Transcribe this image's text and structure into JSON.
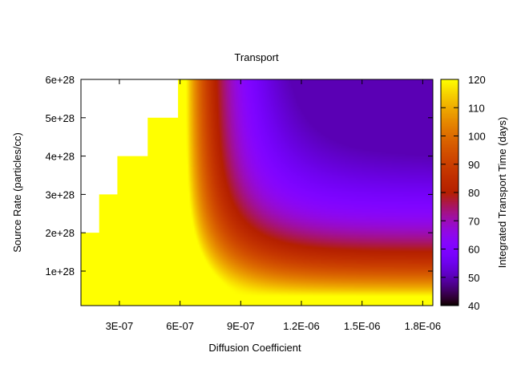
{
  "chart_data": {
    "type": "heatmap",
    "title": "Transport",
    "xlabel": "Diffusion Coefficient",
    "ylabel": "Source Rate (particles/cc)",
    "colorbar_label": "Integrated Transport Time (days)",
    "x_ticks": [
      "3E-07",
      "6E-07",
      "9E-07",
      "1.2E-06",
      "1.5E-06",
      "1.8E-06"
    ],
    "x_tick_values": [
      3e-07,
      6e-07,
      9e-07,
      1.2e-06,
      1.5e-06,
      1.8e-06
    ],
    "y_ticks": [
      "1e+28",
      "2e+28",
      "3e+28",
      "4e+28",
      "5e+28",
      "6e+28"
    ],
    "y_tick_values": [
      1e+28,
      2e+28,
      3e+28,
      4e+28,
      5e+28,
      6e+28
    ],
    "colorbar_ticks": [
      "40",
      "50",
      "60",
      "70",
      "80",
      "90",
      "100",
      "110",
      "120"
    ],
    "colorbar_tick_values": [
      40,
      50,
      60,
      70,
      80,
      90,
      100,
      110,
      120
    ],
    "xlim": [
      1.1e-07,
      1.85e-06
    ],
    "ylim": [
      1e+27,
      6e+28
    ],
    "zlim": [
      40,
      120
    ],
    "palette": "gnuplot-default-rgbformulae-7-5-15",
    "missing_region": {
      "description_points_x": [
        1.1e-07,
        2e-07,
        2e-07,
        2.9e-07,
        2.9e-07,
        4.4e-07,
        4.4e-07,
        5.9e-07,
        5.9e-07
      ],
      "description_points_y": [
        2e+28,
        2e+28,
        3e+28,
        3e+28,
        4e+28,
        4e+28,
        5e+28,
        5e+28,
        6e+28
      ]
    },
    "model": {
      "plateau_value": 120,
      "min_value": 50
    },
    "grid": false,
    "legend": "none",
    "colorbar_position": "right"
  }
}
